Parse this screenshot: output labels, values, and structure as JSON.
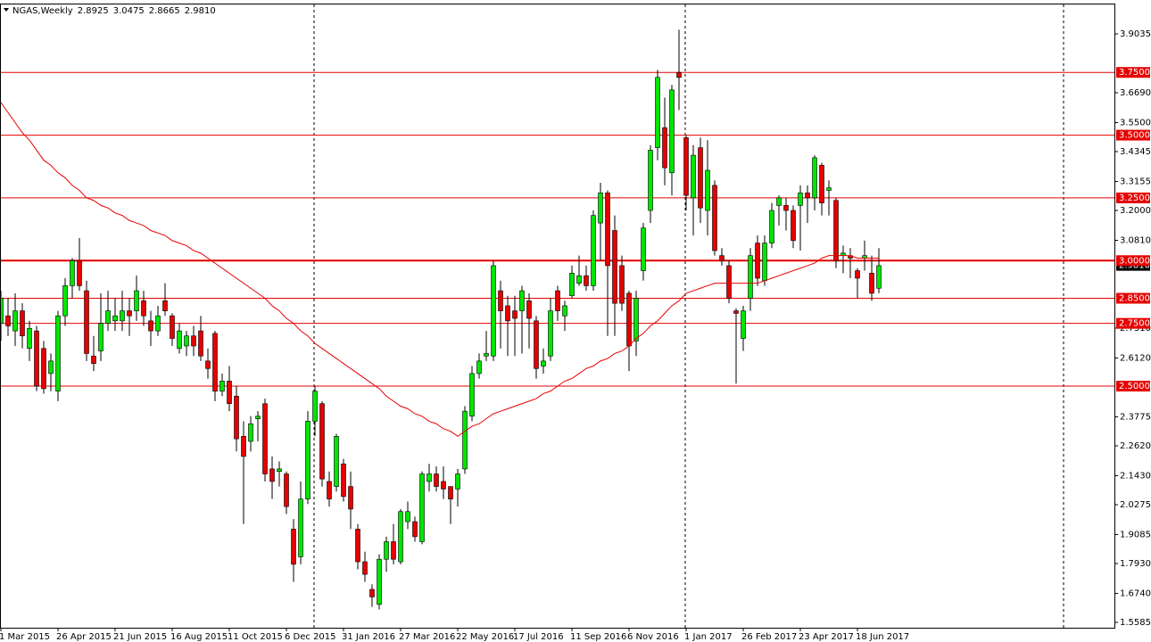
{
  "chart_data": {
    "type": "candlestick",
    "title": "NGAS,Weekly",
    "header_ohlc": [
      {
        "value": 2.8925,
        "label": "2.8925"
      },
      {
        "value": 3.0475,
        "label": "3.0475"
      },
      {
        "value": 2.8665,
        "label": "2.8665"
      },
      {
        "value": 2.981,
        "label": "2.9810"
      }
    ],
    "last_price": {
      "value": 2.981,
      "label": "2.9810"
    },
    "up_color": "#00e600",
    "down_color": "#e60000",
    "ylim": [
      1.5336,
      4.0208
    ],
    "yticks": [
      {
        "value": 3.9035,
        "label": "3.9035"
      },
      {
        "value": 3.669,
        "label": "3.6690"
      },
      {
        "value": 3.55,
        "label": "3.5500"
      },
      {
        "value": 3.4345,
        "label": "3.4345"
      },
      {
        "value": 3.3155,
        "label": "3.3155"
      },
      {
        "value": 3.2,
        "label": "3.2000"
      },
      {
        "value": 3.081,
        "label": "3.0810"
      },
      {
        "value": 2.731,
        "label": "2.7310"
      },
      {
        "value": 2.612,
        "label": "2.6120"
      },
      {
        "value": 2.3775,
        "label": "2.3775"
      },
      {
        "value": 2.262,
        "label": "2.2620"
      },
      {
        "value": 2.143,
        "label": "2.1430"
      },
      {
        "value": 2.0275,
        "label": "2.0275"
      },
      {
        "value": 1.9085,
        "label": "1.9085"
      },
      {
        "value": 1.793,
        "label": "1.7930"
      },
      {
        "value": 1.674,
        "label": "1.6740"
      },
      {
        "value": 1.5585,
        "label": "1.5585"
      }
    ],
    "levels": [
      {
        "value": 3.75,
        "label": "3.7500"
      },
      {
        "value": 3.5,
        "label": "3.5000"
      },
      {
        "value": 3.25,
        "label": "3.2500"
      },
      {
        "value": 3.0,
        "label": "3.0000"
      },
      {
        "value": 2.85,
        "label": "2.8500"
      },
      {
        "value": 2.75,
        "label": "2.7500"
      },
      {
        "value": 2.5,
        "label": "2.5000"
      }
    ],
    "level_color": "#e60000",
    "categories": [
      "1 Mar 2015",
      null,
      null,
      null,
      null,
      null,
      null,
      null,
      "26 Apr 2015",
      null,
      null,
      null,
      null,
      null,
      null,
      null,
      "21 Jun 2015",
      null,
      null,
      null,
      null,
      null,
      null,
      null,
      "16 Aug 2015",
      null,
      null,
      null,
      null,
      null,
      null,
      null,
      "11 Oct 2015",
      null,
      null,
      null,
      null,
      null,
      null,
      null,
      "6 Dec 2015",
      null,
      null,
      null,
      null,
      null,
      null,
      null,
      "31 Jan 2016",
      null,
      null,
      null,
      null,
      null,
      null,
      null,
      "27 Mar 2016",
      null,
      null,
      null,
      null,
      null,
      null,
      null,
      "22 May 2016",
      null,
      null,
      null,
      null,
      null,
      null,
      null,
      "17 Jul 2016",
      null,
      null,
      null,
      null,
      null,
      null,
      null,
      "11 Sep 2016",
      null,
      null,
      null,
      null,
      null,
      null,
      null,
      "6 Nov 2016",
      null,
      null,
      null,
      null,
      null,
      null,
      null,
      "1 Jan 2017",
      null,
      null,
      null,
      null,
      null,
      null,
      null,
      "26 Feb 2017",
      null,
      null,
      null,
      null,
      null,
      null,
      null,
      "23 Apr 2017",
      null,
      null,
      null,
      null,
      null,
      null,
      null,
      "18 Jun 2017",
      null,
      null,
      null
    ],
    "open": [
      2.75,
      2.78,
      2.72,
      2.8,
      2.65,
      2.72,
      2.65,
      2.55,
      2.48,
      2.78,
      2.9,
      3.0,
      2.88,
      2.62,
      2.64,
      2.75,
      2.76,
      2.76,
      2.8,
      2.8,
      2.84,
      2.76,
      2.72,
      2.84,
      2.78,
      2.65,
      2.66,
      2.7,
      2.72,
      2.6,
      2.71,
      2.48,
      2.52,
      2.46,
      2.3,
      2.28,
      2.37,
      2.43,
      2.17,
      2.16,
      2.15,
      1.93,
      1.82,
      2.05,
      2.36,
      2.43,
      2.12,
      2.1,
      2.19,
      2.1,
      1.93,
      1.8,
      1.69,
      1.63,
      1.81,
      1.88,
      1.8,
      1.96,
      1.96,
      1.88,
      2.12,
      2.15,
      2.12,
      2.1,
      2.09,
      2.17,
      2.38,
      2.55,
      2.62,
      2.62,
      2.88,
      2.82,
      2.8,
      2.8,
      2.84,
      2.76,
      2.58,
      2.62,
      2.88,
      2.78,
      2.86,
      2.91,
      2.94,
      2.9,
      3.15,
      3.27,
      3.12,
      2.98,
      2.87,
      2.68,
      2.96,
      3.2,
      3.45,
      3.53,
      3.35,
      3.75,
      3.49,
      3.25,
      3.45,
      3.2,
      3.3,
      3.02,
      2.98,
      2.8,
      2.69,
      2.85,
      3.07,
      2.92,
      3.07,
      3.22,
      3.22,
      3.2,
      3.22,
      3.27,
      3.25,
      3.38,
      3.28,
      3.24,
      3.02,
      3.02,
      2.96,
      3.01,
      2.95,
      2.89
    ],
    "high": [
      2.88,
      2.85,
      2.87,
      2.83,
      2.76,
      2.74,
      2.68,
      2.63,
      2.8,
      2.93,
      3.01,
      3.09,
      2.92,
      2.7,
      2.87,
      2.88,
      2.85,
      2.88,
      2.85,
      2.94,
      2.88,
      2.8,
      2.82,
      2.91,
      2.79,
      2.75,
      2.72,
      2.74,
      2.78,
      2.65,
      2.72,
      2.55,
      2.58,
      2.5,
      2.36,
      2.38,
      2.4,
      2.45,
      2.22,
      2.2,
      2.16,
      1.97,
      2.12,
      2.4,
      2.5,
      2.44,
      2.16,
      2.31,
      2.21,
      2.16,
      1.95,
      1.84,
      1.71,
      1.83,
      1.9,
      1.95,
      2.01,
      2.04,
      1.98,
      2.16,
      2.19,
      2.18,
      2.18,
      2.1,
      2.17,
      2.42,
      2.58,
      2.63,
      2.72,
      3.0,
      2.92,
      2.86,
      2.86,
      2.9,
      2.87,
      2.78,
      2.65,
      2.85,
      2.9,
      2.84,
      2.98,
      3.02,
      2.98,
      3.2,
      3.31,
      3.28,
      3.18,
      3.02,
      2.88,
      2.88,
      3.15,
      3.46,
      3.76,
      3.65,
      3.7,
      3.92,
      3.5,
      3.46,
      3.49,
      3.48,
      3.32,
      3.05,
      3.0,
      2.81,
      2.82,
      3.05,
      3.1,
      3.1,
      3.23,
      3.26,
      3.25,
      3.22,
      3.3,
      3.3,
      3.42,
      3.39,
      3.32,
      3.25,
      3.06,
      3.05,
      2.97,
      3.08,
      3.02,
      3.05
    ],
    "low": [
      2.68,
      2.7,
      2.66,
      2.65,
      2.6,
      2.48,
      2.47,
      2.48,
      2.44,
      2.74,
      2.85,
      2.88,
      2.6,
      2.56,
      2.6,
      2.72,
      2.72,
      2.72,
      2.7,
      2.76,
      2.74,
      2.66,
      2.7,
      2.78,
      2.66,
      2.63,
      2.62,
      2.62,
      2.6,
      2.53,
      2.44,
      2.46,
      2.4,
      2.24,
      1.95,
      2.24,
      2.28,
      2.12,
      2.05,
      2.1,
      1.99,
      1.72,
      1.79,
      2.03,
      2.3,
      2.1,
      2.02,
      2.08,
      2.04,
      1.93,
      1.77,
      1.72,
      1.62,
      1.61,
      1.76,
      1.79,
      1.79,
      1.93,
      1.88,
      1.87,
      2.08,
      2.08,
      2.05,
      1.95,
      2.02,
      2.15,
      2.36,
      2.53,
      2.6,
      2.6,
      2.65,
      2.62,
      2.62,
      2.63,
      2.65,
      2.53,
      2.55,
      2.6,
      2.76,
      2.72,
      2.85,
      2.9,
      2.88,
      2.88,
      3.0,
      2.7,
      2.7,
      2.8,
      2.56,
      2.62,
      2.92,
      3.15,
      3.4,
      3.3,
      3.26,
      3.6,
      3.2,
      3.1,
      3.15,
      3.1,
      3.02,
      2.98,
      2.83,
      2.51,
      2.64,
      2.8,
      2.9,
      2.9,
      3.05,
      3.14,
      3.12,
      3.05,
      3.04,
      3.15,
      3.2,
      3.18,
      3.18,
      2.97,
      2.95,
      2.93,
      2.85,
      2.96,
      2.84,
      2.87
    ],
    "close": [
      2.85,
      2.74,
      2.8,
      2.7,
      2.73,
      2.5,
      2.49,
      2.6,
      2.78,
      2.9,
      3.0,
      2.9,
      2.63,
      2.59,
      2.75,
      2.8,
      2.78,
      2.8,
      2.78,
      2.88,
      2.78,
      2.72,
      2.78,
      2.8,
      2.69,
      2.72,
      2.7,
      2.66,
      2.62,
      2.57,
      2.48,
      2.52,
      2.43,
      2.29,
      2.22,
      2.35,
      2.38,
      2.15,
      2.12,
      2.17,
      2.02,
      1.79,
      2.05,
      2.36,
      2.48,
      2.13,
      2.05,
      2.3,
      2.06,
      2.01,
      1.8,
      1.75,
      1.66,
      1.81,
      1.88,
      1.81,
      2.0,
      2.0,
      1.9,
      2.15,
      2.15,
      2.1,
      2.09,
      2.05,
      2.15,
      2.4,
      2.55,
      2.6,
      2.63,
      2.98,
      2.8,
      2.76,
      2.77,
      2.88,
      2.77,
      2.57,
      2.6,
      2.8,
      2.8,
      2.82,
      2.95,
      2.94,
      2.9,
      3.18,
      3.27,
      2.98,
      2.83,
      2.83,
      2.66,
      2.85,
      3.13,
      3.44,
      3.73,
      3.37,
      3.68,
      3.73,
      3.26,
      3.42,
      3.21,
      3.36,
      3.04,
      3.0,
      2.85,
      2.79,
      2.8,
      3.02,
      2.93,
      3.07,
      3.2,
      3.25,
      3.2,
      3.08,
      3.27,
      3.25,
      3.41,
      3.23,
      3.29,
      3.0,
      3.03,
      3.01,
      2.93,
      3.02,
      2.87,
      2.98
    ],
    "ma": {
      "color": "#e60000",
      "values": [
        3.63,
        3.59,
        3.55,
        3.51,
        3.48,
        3.44,
        3.4,
        3.38,
        3.35,
        3.33,
        3.3,
        3.28,
        3.25,
        3.24,
        3.22,
        3.21,
        3.19,
        3.18,
        3.16,
        3.15,
        3.14,
        3.12,
        3.11,
        3.1,
        3.08,
        3.07,
        3.06,
        3.04,
        3.03,
        3.01,
        2.99,
        2.97,
        2.95,
        2.93,
        2.91,
        2.89,
        2.87,
        2.85,
        2.82,
        2.8,
        2.77,
        2.75,
        2.72,
        2.7,
        2.67,
        2.65,
        2.63,
        2.61,
        2.59,
        2.57,
        2.55,
        2.53,
        2.51,
        2.49,
        2.46,
        2.44,
        2.42,
        2.41,
        2.39,
        2.38,
        2.36,
        2.35,
        2.33,
        2.32,
        2.3,
        2.32,
        2.34,
        2.35,
        2.37,
        2.39,
        2.4,
        2.41,
        2.42,
        2.43,
        2.44,
        2.45,
        2.47,
        2.48,
        2.5,
        2.52,
        2.53,
        2.55,
        2.57,
        2.58,
        2.6,
        2.61,
        2.63,
        2.64,
        2.66,
        2.69,
        2.71,
        2.74,
        2.76,
        2.79,
        2.82,
        2.84,
        2.87,
        2.88,
        2.89,
        2.9,
        2.91,
        2.91,
        2.91,
        2.91,
        2.91,
        2.91,
        2.91,
        2.92,
        2.93,
        2.94,
        2.95,
        2.96,
        2.97,
        2.98,
        2.99,
        3.01,
        3.02,
        3.02,
        3.02,
        3.02,
        3.01,
        3.01,
        3.01,
        3.01
      ]
    }
  }
}
